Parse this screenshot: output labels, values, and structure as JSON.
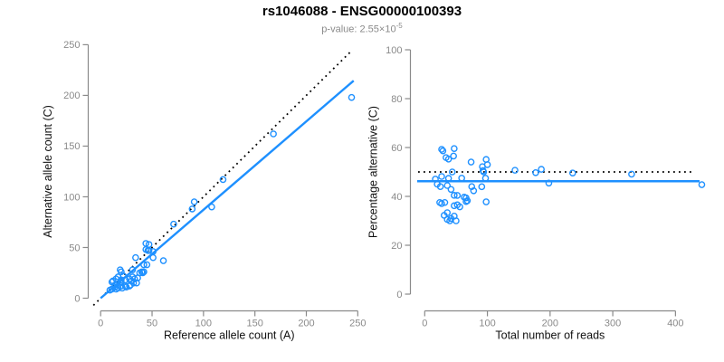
{
  "header": {
    "title": "rs1046088 - ENSG00000100393",
    "subtitle_text": "p-value: 2.55×10",
    "subtitle_exponent": "-5"
  },
  "colors": {
    "point_blue": "#1E90FF",
    "line_blue": "#1E90FF",
    "dotted_black": "#000000",
    "axis_gray": "#8a8a8a",
    "tick_label_gray": "#8a8a8a",
    "label_black": "#111111",
    "background": "#ffffff"
  },
  "chart_data": {
    "type": "scatter",
    "title": "rs1046088 - ENSG00000100393",
    "subtitle": "p-value: 2.55×10^-5",
    "points_ref_alt": [
      [
        244,
        198
      ],
      [
        168,
        162
      ],
      [
        119,
        117
      ],
      [
        108,
        90
      ],
      [
        91,
        95
      ],
      [
        89,
        88
      ],
      [
        71,
        73
      ],
      [
        61,
        37
      ],
      [
        44,
        54
      ],
      [
        47,
        53
      ],
      [
        44,
        48
      ],
      [
        47,
        47
      ],
      [
        34,
        40
      ],
      [
        51,
        40
      ],
      [
        45,
        33
      ],
      [
        42,
        33
      ],
      [
        51,
        46
      ],
      [
        46,
        47
      ],
      [
        40,
        26
      ],
      [
        42,
        26
      ],
      [
        38,
        25
      ],
      [
        41,
        25
      ],
      [
        31,
        28
      ],
      [
        31,
        21
      ],
      [
        33,
        19
      ],
      [
        36,
        20
      ],
      [
        30,
        17
      ],
      [
        28,
        19
      ],
      [
        24,
        18
      ],
      [
        22,
        22
      ],
      [
        20,
        26
      ],
      [
        19,
        28
      ],
      [
        17,
        21
      ],
      [
        15,
        19
      ],
      [
        11,
        16
      ],
      [
        12,
        17
      ],
      [
        14,
        13
      ],
      [
        11,
        9
      ],
      [
        9,
        8
      ],
      [
        14,
        11
      ],
      [
        20,
        16
      ],
      [
        20,
        18
      ],
      [
        20,
        12
      ],
      [
        15,
        9
      ],
      [
        17,
        10
      ],
      [
        21,
        10
      ],
      [
        24,
        12
      ],
      [
        25,
        11
      ],
      [
        28,
        12
      ],
      [
        29,
        13
      ],
      [
        32,
        15
      ],
      [
        35,
        15
      ]
    ],
    "panels": [
      {
        "name": "counts-panel",
        "xlabel": "Reference allele count (A)",
        "ylabel": "Alternative allele count (C)",
        "xlim": [
          0,
          250
        ],
        "ylim": [
          0,
          250
        ],
        "xticks": [
          0,
          50,
          100,
          150,
          200,
          250
        ],
        "yticks": [
          0,
          50,
          100,
          150,
          200,
          250
        ],
        "points": "x = ref, y = alt (from points_ref_alt)",
        "grid": false,
        "legend": false,
        "lines": [
          {
            "name": "identity-line",
            "style": "dotted",
            "color": "#000000",
            "slope": 1,
            "intercept": 0
          },
          {
            "name": "fit-line",
            "style": "solid",
            "color": "#1E90FF",
            "slope": 0.872,
            "intercept": 0
          }
        ]
      },
      {
        "name": "percentage-panel",
        "xlabel": "Total number of reads",
        "ylabel": "Percentage alternative (C)",
        "xlim": [
          0,
          450
        ],
        "ylim": [
          0,
          100
        ],
        "xticks": [
          0,
          100,
          200,
          300,
          400
        ],
        "yticks": [
          0,
          20,
          40,
          60,
          80,
          100
        ],
        "points": "x = ref+alt, y = 100*alt/(ref+alt) (from points_ref_alt)",
        "grid": false,
        "legend": false,
        "lines": [
          {
            "name": "fifty-percent-line",
            "style": "dotted",
            "color": "#000000",
            "h": 50
          },
          {
            "name": "mean-percent-line",
            "style": "solid",
            "color": "#1E90FF",
            "h": 46.2
          }
        ]
      }
    ]
  }
}
